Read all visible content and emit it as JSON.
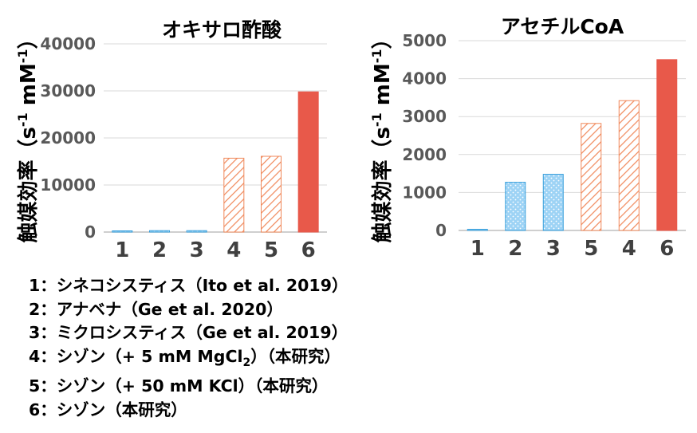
{
  "chart_data": [
    {
      "type": "bar",
      "title": "オキサロ酢酸",
      "ylabel_main": "触媒効率（s",
      "ylabel_sup1": "-1",
      "ylabel_mid": " mM",
      "ylabel_sup2": "-1",
      "ylabel_end": "）",
      "ylim": [
        0,
        40000
      ],
      "yticks": [
        "0",
        "10000",
        "20000",
        "30000",
        "40000"
      ],
      "categories": [
        "1",
        "2",
        "3",
        "4",
        "5",
        "6"
      ],
      "values": [
        200,
        300,
        300,
        15700,
        16100,
        29800
      ],
      "styles": [
        "dots",
        "dots",
        "dots",
        "hatch",
        "hatch",
        "solid"
      ],
      "grid": true
    },
    {
      "type": "bar",
      "title": "アセチルCoA",
      "ylabel_main": "触媒効率（s",
      "ylabel_sup1": "-1",
      "ylabel_mid": " mM",
      "ylabel_sup2": "-1",
      "ylabel_end": "）",
      "ylim": [
        0,
        5000
      ],
      "yticks": [
        "0",
        "1000",
        "2000",
        "3000",
        "4000",
        "5000"
      ],
      "categories": [
        "1",
        "2",
        "3",
        "5",
        "4",
        "6"
      ],
      "values": [
        30,
        1270,
        1480,
        2820,
        3420,
        4500
      ],
      "styles": [
        "dots",
        "dots",
        "dots",
        "hatch",
        "hatch",
        "solid"
      ],
      "grid": true
    }
  ],
  "colors": {
    "dots_fill": "#9dd3f5",
    "dots_stroke": "#3aa0dc",
    "hatch_color": "#f0885a",
    "solid": "#e8594a",
    "grid": "#d9d9d9",
    "axis": "#bfbfbf"
  },
  "legend": [
    {
      "prefix": "1：シネコシスティス（Ito et al. 2019）",
      "sub": "",
      "suffix": ""
    },
    {
      "prefix": "2：アナベナ（Ge et al. 2020）",
      "sub": "",
      "suffix": ""
    },
    {
      "prefix": "3：ミクロシスティス（Ge et al. 2019）",
      "sub": "",
      "suffix": ""
    },
    {
      "prefix": "4：シゾン（+ 5 mM MgCl",
      "sub": "2",
      "suffix": "）（本研究）"
    },
    {
      "prefix": "5：シゾン（+ 50 mM KCl）（本研究）",
      "sub": "",
      "suffix": ""
    },
    {
      "prefix": "6：シゾン（本研究）",
      "sub": "",
      "suffix": ""
    }
  ]
}
